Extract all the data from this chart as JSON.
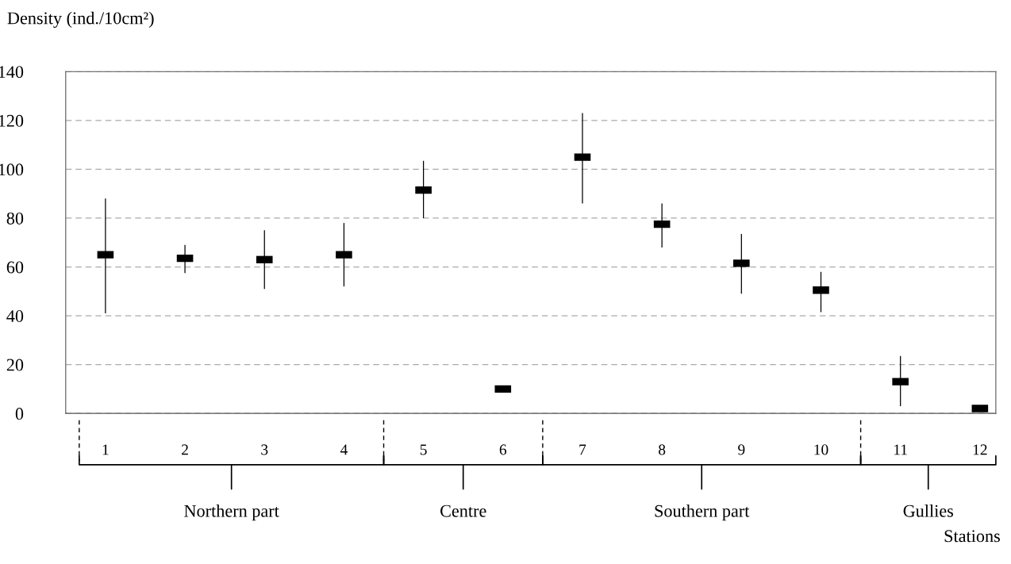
{
  "chart_data": {
    "type": "scatter",
    "ylabel": "Density (ind./10cm²)",
    "xlabel": "Stations",
    "categories": [
      "1",
      "2",
      "3",
      "4",
      "5",
      "6",
      "7",
      "8",
      "9",
      "10",
      "11",
      "12"
    ],
    "values": [
      65,
      63.5,
      63,
      65,
      91.5,
      10,
      105,
      77.5,
      61.5,
      50.5,
      13,
      2
    ],
    "errors": [
      [
        41,
        88
      ],
      [
        57.5,
        69
      ],
      [
        51,
        75
      ],
      [
        52,
        78
      ],
      [
        80,
        103.5
      ],
      null,
      [
        86,
        123
      ],
      [
        68,
        86
      ],
      [
        49,
        73.5
      ],
      [
        41.5,
        58
      ],
      [
        3,
        23.5
      ],
      null
    ],
    "color": "#000000",
    "ylim": [
      0,
      140
    ],
    "yticks": [
      0,
      20,
      40,
      60,
      80,
      100,
      120,
      140
    ],
    "grid": "y",
    "annotations": [
      "Northern part",
      "Centre",
      "Southern part",
      "Gullies"
    ]
  }
}
